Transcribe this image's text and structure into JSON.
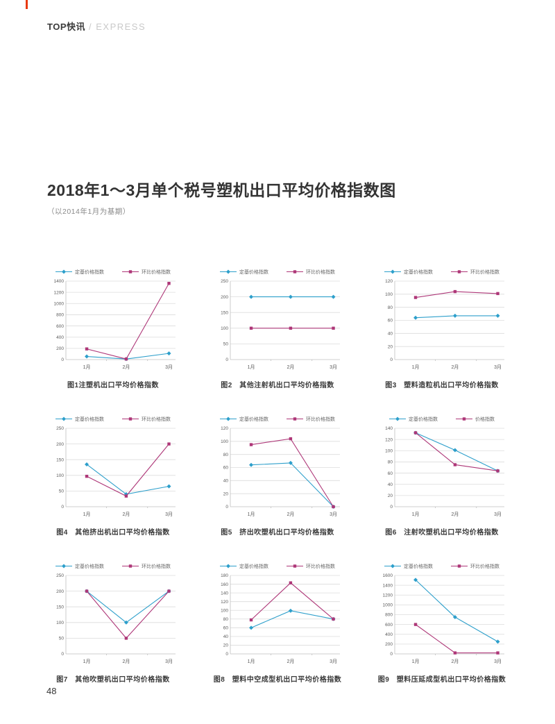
{
  "header": {
    "brand": "TOP快讯",
    "brand_suffix": "/ EXPRESS"
  },
  "title": "2018年1～3月单个税号塑机出口平均价格指数图",
  "subtitle": "（以2014年1月为基期）",
  "page_number": "48",
  "colors": {
    "series_base": "#2D9FCB",
    "series_mom": "#AE3778",
    "grid": "#DCDCDC",
    "axis": "#BFBFBF",
    "edge_mark": "#E8380D"
  },
  "chart_data": [
    {
      "type": "line",
      "title": "图1注塑机出口平均价格指数",
      "categories": [
        "1月",
        "2月",
        "3月"
      ],
      "series": [
        {
          "name": "定基价格指数",
          "values": [
            55,
            10,
            110
          ],
          "color": "#2D9FCB",
          "marker": "diamond"
        },
        {
          "name": "环比价格指数",
          "values": [
            190,
            10,
            1360
          ],
          "color": "#AE3778",
          "marker": "square"
        }
      ],
      "ylim": [
        0,
        1400
      ],
      "ystep": 200,
      "grid": true,
      "legend_position": "top"
    },
    {
      "type": "line",
      "title": "图2　其他注射机出口平均价格指数",
      "categories": [
        "1月",
        "2月",
        "3月"
      ],
      "series": [
        {
          "name": "定基价格指数",
          "values": [
            200,
            200,
            200
          ],
          "color": "#2D9FCB",
          "marker": "diamond"
        },
        {
          "name": "环比价格指数",
          "values": [
            100,
            100,
            100
          ],
          "color": "#AE3778",
          "marker": "square"
        }
      ],
      "ylim": [
        0,
        250
      ],
      "ystep": 50,
      "grid": true,
      "legend_position": "top"
    },
    {
      "type": "line",
      "title": "图3　塑料造粒机出口平均价格指数",
      "categories": [
        "1月",
        "2月",
        "3月"
      ],
      "series": [
        {
          "name": "定基价格指数",
          "values": [
            64,
            67,
            67
          ],
          "color": "#2D9FCB",
          "marker": "diamond"
        },
        {
          "name": "环比价格指数",
          "values": [
            95,
            104,
            101
          ],
          "color": "#AE3778",
          "marker": "square"
        }
      ],
      "ylim": [
        0,
        120
      ],
      "ystep": 20,
      "grid": true,
      "legend_position": "top"
    },
    {
      "type": "line",
      "title": "图4　其他挤出机出口平均价格指数",
      "categories": [
        "1月",
        "2月",
        "3月"
      ],
      "series": [
        {
          "name": "定基价格指数",
          "values": [
            135,
            40,
            65
          ],
          "color": "#2D9FCB",
          "marker": "diamond"
        },
        {
          "name": "环比价格指数",
          "values": [
            97,
            34,
            200
          ],
          "color": "#AE3778",
          "marker": "square"
        }
      ],
      "ylim": [
        0,
        250
      ],
      "ystep": 50,
      "grid": true,
      "legend_position": "top"
    },
    {
      "type": "line",
      "title": "图5　挤出吹塑机出口平均价格指数",
      "categories": [
        "1月",
        "2月",
        "3月"
      ],
      "series": [
        {
          "name": "定基价格指数",
          "values": [
            64,
            67,
            0
          ],
          "color": "#2D9FCB",
          "marker": "diamond"
        },
        {
          "name": "环比价格指数",
          "values": [
            95,
            104,
            0
          ],
          "color": "#AE3778",
          "marker": "square"
        }
      ],
      "ylim": [
        0,
        120
      ],
      "ystep": 20,
      "grid": true,
      "legend_position": "top"
    },
    {
      "type": "line",
      "title": "图6　注射吹塑机出口平均价格指数",
      "categories": [
        "1月",
        "2月",
        "3月"
      ],
      "series": [
        {
          "name": "定基价格指数",
          "values": [
            132,
            101,
            64
          ],
          "color": "#2D9FCB",
          "marker": "diamond"
        },
        {
          "name": "价格指数",
          "values": [
            132,
            75,
            64
          ],
          "color": "#AE3778",
          "marker": "square"
        }
      ],
      "ylim": [
        0,
        140
      ],
      "ystep": 20,
      "grid": true,
      "legend_position": "top"
    },
    {
      "type": "line",
      "title": "图7　其他吹塑机出口平均价格指数",
      "categories": [
        "1月",
        "2月",
        "3月"
      ],
      "series": [
        {
          "name": "定基价格指数",
          "values": [
            200,
            100,
            200
          ],
          "color": "#2D9FCB",
          "marker": "diamond"
        },
        {
          "name": "环比价格指数",
          "values": [
            200,
            50,
            200
          ],
          "color": "#AE3778",
          "marker": "square"
        }
      ],
      "ylim": [
        0,
        250
      ],
      "ystep": 50,
      "grid": true,
      "legend_position": "top"
    },
    {
      "type": "line",
      "title": "图8　塑料中空成型机出口平均价格指数",
      "categories": [
        "1月",
        "2月",
        "3月"
      ],
      "series": [
        {
          "name": "定基价格指数",
          "values": [
            60,
            99,
            80
          ],
          "color": "#2D9FCB",
          "marker": "diamond"
        },
        {
          "name": "环比价格指数",
          "values": [
            78,
            163,
            80
          ],
          "color": "#AE3778",
          "marker": "square"
        }
      ],
      "ylim": [
        0,
        180
      ],
      "ystep": 20,
      "grid": true,
      "legend_position": "top"
    },
    {
      "type": "line",
      "title": "图9　塑料压延成型机出口平均价格指数",
      "categories": [
        "1月",
        "2月",
        "3月"
      ],
      "series": [
        {
          "name": "定基价格指数",
          "values": [
            1510,
            750,
            250
          ],
          "color": "#2D9FCB",
          "marker": "diamond"
        },
        {
          "name": "环比价格指数",
          "values": [
            600,
            20,
            20
          ],
          "color": "#AE3778",
          "marker": "square"
        }
      ],
      "ylim": [
        0,
        1600
      ],
      "ystep": 200,
      "grid": true,
      "legend_position": "top"
    }
  ]
}
